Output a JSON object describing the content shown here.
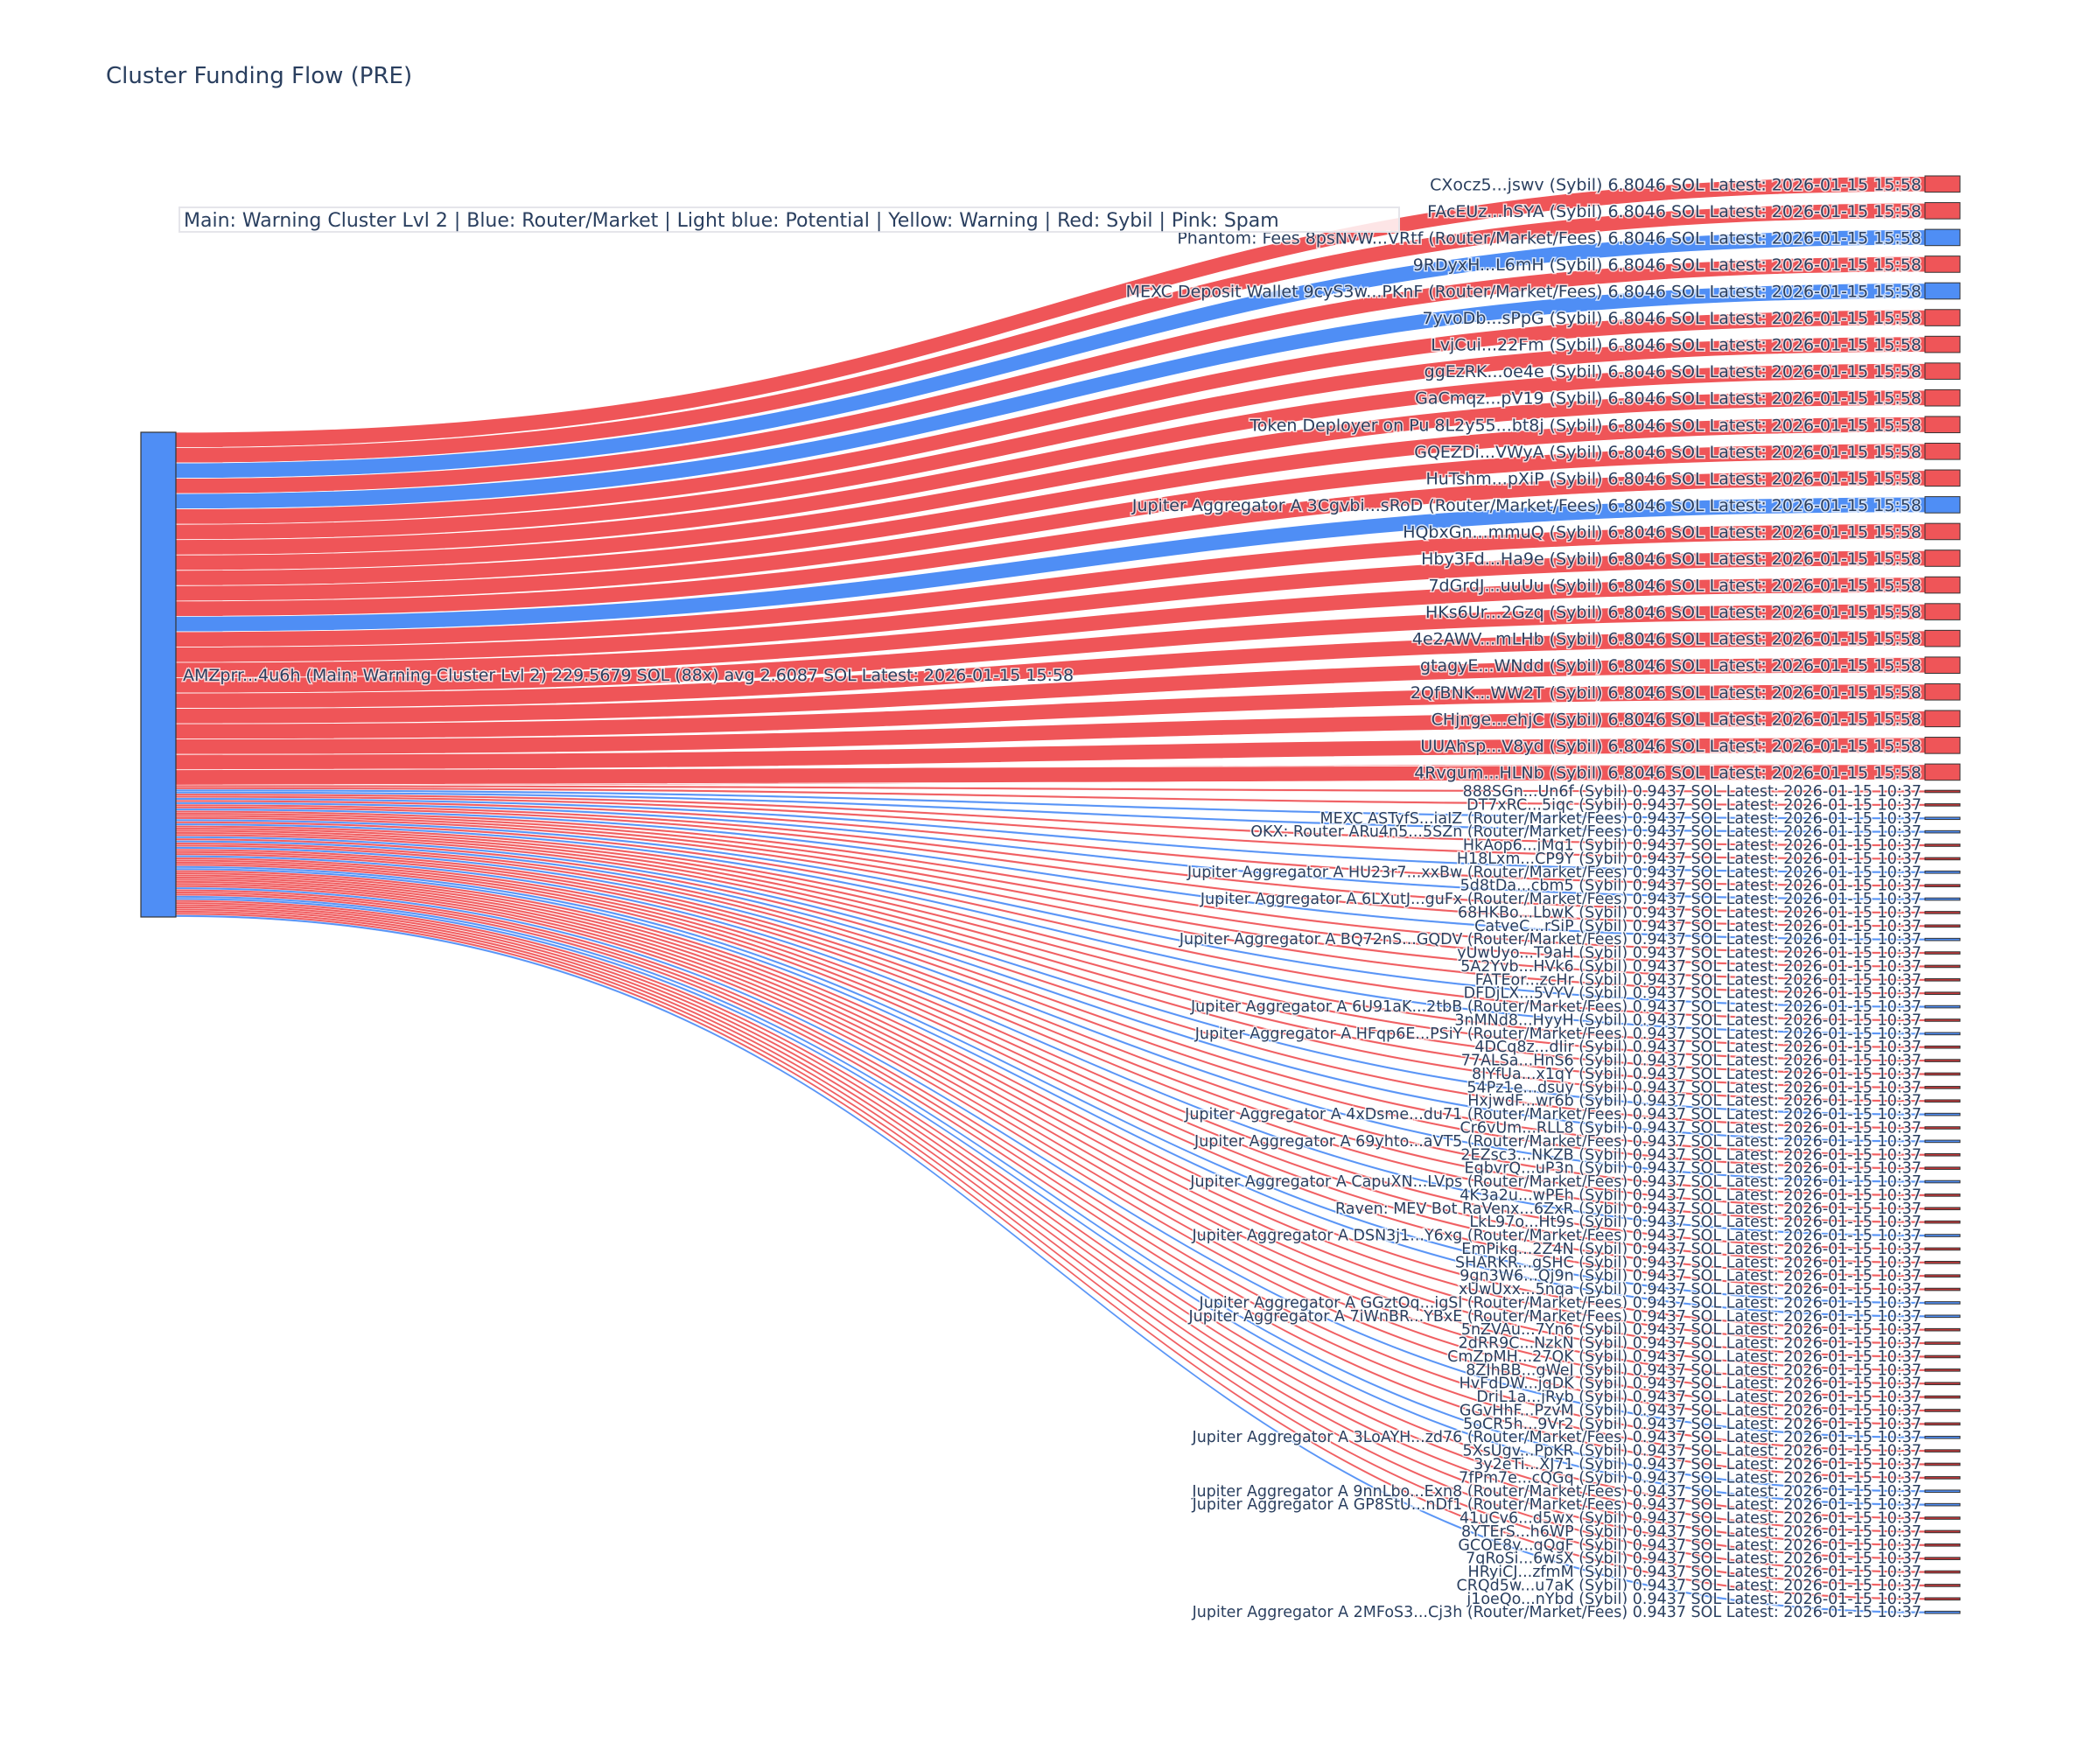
{
  "title": "Cluster Funding Flow (PRE)",
  "legend": "Main: Warning Cluster Lvl 2  |  Blue: Router/Market | Light blue: Potential | Yellow: Warning | Red: Sybil | Pink: Spam",
  "colors": {
    "router": "#4f8ef5",
    "sybil": "#ef5558",
    "sybil_small_node": "#c0393b",
    "source": "#4f8ef5",
    "node_border": "#333333",
    "text": "#2a3f5f"
  },
  "chart_data": {
    "type": "sankey",
    "title": "Cluster Funding Flow (PRE)",
    "source": {
      "label": "AMZprr...4u6h (Main: Warning Cluster Lvl 2) 229.5679 SOL (88x) avg 2.6087 SOL Latest: 2026-01-15 15:58",
      "total_sol": 229.5679,
      "count": 88,
      "avg_sol": 2.6087,
      "category": "router"
    },
    "large_targets": {
      "value_sol": 6.8046,
      "latest": "2026-01-15 15:58",
      "nodes": [
        {
          "name": "CXocz5...jswv",
          "tag": "Sybil",
          "category": "sybil"
        },
        {
          "name": "FAcEUz...hSYA",
          "tag": "Sybil",
          "category": "sybil"
        },
        {
          "name": "Phantom: Fees 8psNvW...VRtf",
          "tag": "Router/Market/Fees",
          "category": "router"
        },
        {
          "name": "9RDyxH...L6mH",
          "tag": "Sybil",
          "category": "sybil"
        },
        {
          "name": "MEXC Deposit Wallet 9cyS3w...PKnF",
          "tag": "Router/Market/Fees",
          "category": "router"
        },
        {
          "name": "7yvoDb...sPpG",
          "tag": "Sybil",
          "category": "sybil"
        },
        {
          "name": "LvjCui...22Fm",
          "tag": "Sybil",
          "category": "sybil"
        },
        {
          "name": "ggEzRK...oe4e",
          "tag": "Sybil",
          "category": "sybil"
        },
        {
          "name": "GaCmqz...pV19",
          "tag": "Sybil",
          "category": "sybil"
        },
        {
          "name": "Token Deployer on Pu 8L2y55...bt8j",
          "tag": "Sybil",
          "category": "sybil"
        },
        {
          "name": "GQEZDi...VWyA",
          "tag": "Sybil",
          "category": "sybil"
        },
        {
          "name": "HuTshm...pXiP",
          "tag": "Sybil",
          "category": "sybil"
        },
        {
          "name": "Jupiter Aggregator A 3Cgvbi...sRoD",
          "tag": "Router/Market/Fees",
          "category": "router"
        },
        {
          "name": "HQbxGn...mmuQ",
          "tag": "Sybil",
          "category": "sybil"
        },
        {
          "name": "Hby3Fd...Ha9e",
          "tag": "Sybil",
          "category": "sybil"
        },
        {
          "name": "7dGrdJ...uuUu",
          "tag": "Sybil",
          "category": "sybil"
        },
        {
          "name": "HKs6Ur...2Gzq",
          "tag": "Sybil",
          "category": "sybil"
        },
        {
          "name": "4e2AWV...mLHb",
          "tag": "Sybil",
          "category": "sybil"
        },
        {
          "name": "gtagyE...WNdd",
          "tag": "Sybil",
          "category": "sybil"
        },
        {
          "name": "2QfBNK...WW2T",
          "tag": "Sybil",
          "category": "sybil"
        },
        {
          "name": "CHjnge...ehjC",
          "tag": "Sybil",
          "category": "sybil"
        },
        {
          "name": "UUAhsp...V8yd",
          "tag": "Sybil",
          "category": "sybil"
        },
        {
          "name": "4Rvgum...HLNb",
          "tag": "Sybil",
          "category": "sybil"
        }
      ]
    },
    "small_targets": {
      "value_sol": 0.9437,
      "latest": "2026-01-15 10:37",
      "nodes": [
        {
          "name": "888SGn...Un6f",
          "tag": "Sybil",
          "category": "sybil"
        },
        {
          "name": "DT7xRC...5iqc",
          "tag": "Sybil",
          "category": "sybil"
        },
        {
          "name": "MEXC ASTyfS...iaIZ",
          "tag": "Router/Market/Fees",
          "category": "router"
        },
        {
          "name": "OKX: Router ARu4n5...5SZn",
          "tag": "Router/Market/Fees",
          "category": "router"
        },
        {
          "name": "HkAop6...jMq1",
          "tag": "Sybil",
          "category": "sybil"
        },
        {
          "name": "H18Lxm...CP9Y",
          "tag": "Sybil",
          "category": "sybil"
        },
        {
          "name": "Jupiter Aggregator A HU23r7...xxBw",
          "tag": "Router/Market/Fees",
          "category": "router"
        },
        {
          "name": "5d8tDa...cbm5",
          "tag": "Sybil",
          "category": "sybil"
        },
        {
          "name": "Jupiter Aggregator A 6LXutJ...guFx",
          "tag": "Router/Market/Fees",
          "category": "router"
        },
        {
          "name": "68HKBo...LbwK",
          "tag": "Sybil",
          "category": "sybil"
        },
        {
          "name": "CatveC...rSiP",
          "tag": "Sybil",
          "category": "sybil"
        },
        {
          "name": "Jupiter Aggregator A BQ72nS...GQDV",
          "tag": "Router/Market/Fees",
          "category": "router"
        },
        {
          "name": "yUwUyo...T9aH",
          "tag": "Sybil",
          "category": "sybil"
        },
        {
          "name": "5A2Yvb...HVk6",
          "tag": "Sybil",
          "category": "sybil"
        },
        {
          "name": "FATEor...zcHr",
          "tag": "Sybil",
          "category": "sybil"
        },
        {
          "name": "DFDjLX...5VYV",
          "tag": "Sybil",
          "category": "sybil"
        },
        {
          "name": "Jupiter Aggregator A 6U91aK...2tbB",
          "tag": "Router/Market/Fees",
          "category": "router"
        },
        {
          "name": "3nMNd8...HyyH",
          "tag": "Sybil",
          "category": "sybil"
        },
        {
          "name": "Jupiter Aggregator A HFqp6E...PSiY",
          "tag": "Router/Market/Fees",
          "category": "router"
        },
        {
          "name": "4DCq8z...dIir",
          "tag": "Sybil",
          "category": "sybil"
        },
        {
          "name": "77ALSa...HnS6",
          "tag": "Sybil",
          "category": "sybil"
        },
        {
          "name": "8JYfUa...x1qY",
          "tag": "Sybil",
          "category": "sybil"
        },
        {
          "name": "54Pz1e...dsuy",
          "tag": "Sybil",
          "category": "sybil"
        },
        {
          "name": "HxjwdF...wr6b",
          "tag": "Sybil",
          "category": "sybil"
        },
        {
          "name": "Jupiter Aggregator A 4xDsme...du71",
          "tag": "Router/Market/Fees",
          "category": "router"
        },
        {
          "name": "Cr6vUm...RLL8",
          "tag": "Sybil",
          "category": "sybil"
        },
        {
          "name": "Jupiter Aggregator A 69yhto...aVT5",
          "tag": "Router/Market/Fees",
          "category": "router"
        },
        {
          "name": "2EZsc3...NKZB",
          "tag": "Sybil",
          "category": "sybil"
        },
        {
          "name": "EqbvrQ...uP3n",
          "tag": "Sybil",
          "category": "sybil"
        },
        {
          "name": "Jupiter Aggregator A CapuXN...LVps",
          "tag": "Router/Market/Fees",
          "category": "router"
        },
        {
          "name": "4K3a2u...wPEh",
          "tag": "Sybil",
          "category": "sybil"
        },
        {
          "name": "Raven: MEV Bot RaVenx...6ZxR",
          "tag": "Sybil",
          "category": "sybil"
        },
        {
          "name": "LkL97o...Ht9s",
          "tag": "Sybil",
          "category": "sybil"
        },
        {
          "name": "Jupiter Aggregator A DSN3j1...Y6xg",
          "tag": "Router/Market/Fees",
          "category": "router"
        },
        {
          "name": "EmPikq...2Z4N",
          "tag": "Sybil",
          "category": "sybil"
        },
        {
          "name": "SHARKR...gSHC",
          "tag": "Sybil",
          "category": "sybil"
        },
        {
          "name": "9gn3W6...Qj9n",
          "tag": "Sybil",
          "category": "sybil"
        },
        {
          "name": "xUwUxx...5nqa",
          "tag": "Sybil",
          "category": "sybil"
        },
        {
          "name": "Jupiter Aggregator A GGztOq...igSl",
          "tag": "Router/Market/Fees",
          "category": "router"
        },
        {
          "name": "Jupiter Aggregator A 7iWnBR...YBxE",
          "tag": "Router/Market/Fees",
          "category": "router"
        },
        {
          "name": "5nZVAu...7Yn6",
          "tag": "Sybil",
          "category": "sybil"
        },
        {
          "name": "2dRR9C...NzkN",
          "tag": "Sybil",
          "category": "sybil"
        },
        {
          "name": "CmZpMH...27QK",
          "tag": "Sybil",
          "category": "sybil"
        },
        {
          "name": "8ZJhBB...gWeJ",
          "tag": "Sybil",
          "category": "sybil"
        },
        {
          "name": "HvFdDW...jgDK",
          "tag": "Sybil",
          "category": "sybil"
        },
        {
          "name": "DriL1a...jRyb",
          "tag": "Sybil",
          "category": "sybil"
        },
        {
          "name": "GGvHhF...PzvM",
          "tag": "Sybil",
          "category": "sybil"
        },
        {
          "name": "5oCR5h...9Vr2",
          "tag": "Sybil",
          "category": "sybil"
        },
        {
          "name": "Jupiter Aggregator A 3LoAYH...zd76",
          "tag": "Router/Market/Fees",
          "category": "router"
        },
        {
          "name": "5XsUgv...PpKR",
          "tag": "Sybil",
          "category": "sybil"
        },
        {
          "name": "3y2eTi...XJ71",
          "tag": "Sybil",
          "category": "sybil"
        },
        {
          "name": "7fPm7e...cQGq",
          "tag": "Sybil",
          "category": "sybil"
        },
        {
          "name": "Jupiter Aggregator A 9nnLbo...Exn8",
          "tag": "Router/Market/Fees",
          "category": "router"
        },
        {
          "name": "Jupiter Aggregator A GP8StU...nDf1",
          "tag": "Router/Market/Fees",
          "category": "router"
        },
        {
          "name": "41uCv6...d5wx",
          "tag": "Sybil",
          "category": "sybil"
        },
        {
          "name": "8YTErS...h6WP",
          "tag": "Sybil",
          "category": "sybil"
        },
        {
          "name": "GCOE8y...gQgF",
          "tag": "Sybil",
          "category": "sybil"
        },
        {
          "name": "7qRoSi...6wsX",
          "tag": "Sybil",
          "category": "sybil"
        },
        {
          "name": "HRyiCJ...zfmM",
          "tag": "Sybil",
          "category": "sybil"
        },
        {
          "name": "CRQd5w...u7aK",
          "tag": "Sybil",
          "category": "sybil"
        },
        {
          "name": "j1oeQo...nYbd",
          "tag": "Sybil",
          "category": "sybil"
        },
        {
          "name": "Jupiter Aggregator A 2MFoS3...Cj3h",
          "tag": "Router/Market/Fees",
          "category": "router"
        }
      ]
    }
  }
}
